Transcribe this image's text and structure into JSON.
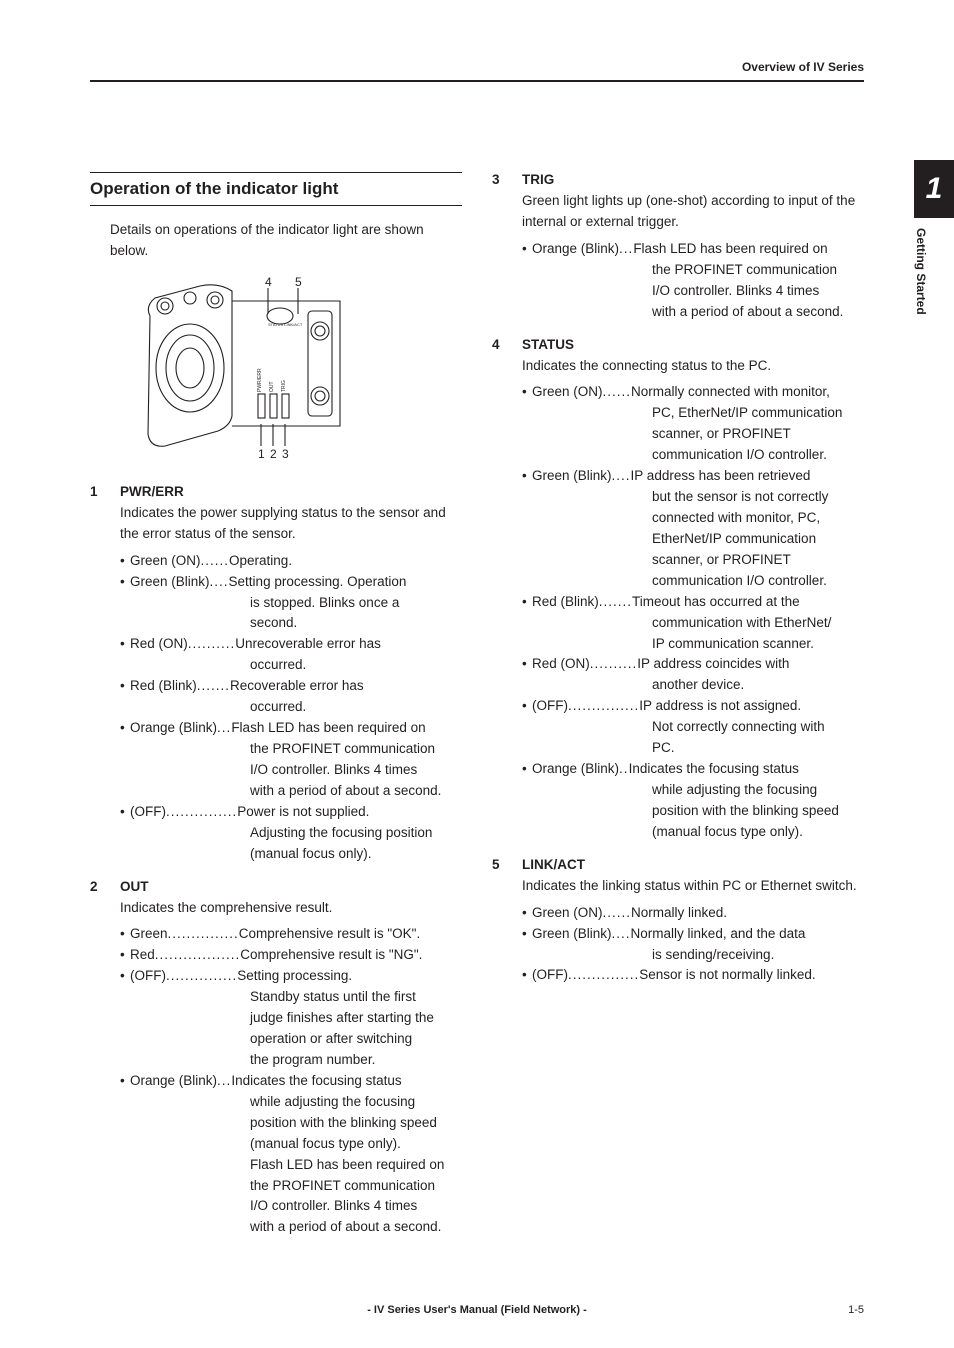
{
  "header": {
    "right": "Overview of IV Series"
  },
  "tab": {
    "number": "1",
    "label": "Getting Started"
  },
  "section_title": "Operation of the indicator light",
  "intro": "Details on operations of the indicator light are shown below.",
  "diagram": {
    "top_numbers": [
      "4",
      "5"
    ],
    "bottom_numbers": [
      "1",
      "2",
      "3"
    ],
    "pin_labels": [
      "PWR/ERR",
      "OUT",
      "TRIG"
    ],
    "top_label": "STATUS LINK/ACT"
  },
  "items": [
    {
      "n": "1",
      "title": "PWR/ERR",
      "body": "Indicates the power supplying status to the sensor and the error status of the sensor.",
      "bullets": [
        {
          "label": "Green (ON)",
          "dots": "......",
          "desc": "Operating.",
          "cont": []
        },
        {
          "label": "Green (Blink)",
          "dots": "....",
          "desc": "Setting processing. Operation",
          "cont": [
            "is stopped. Blinks once a",
            "second."
          ]
        },
        {
          "label": "Red (ON)",
          "dots": "..........",
          "desc": "Unrecoverable error has",
          "cont": [
            "occurred."
          ]
        },
        {
          "label": "Red (Blink)",
          "dots": ".......",
          "desc": "Recoverable error has",
          "cont": [
            "occurred."
          ]
        },
        {
          "label": "Orange (Blink)",
          "dots": "...",
          "desc": "Flash LED has been required on",
          "cont": [
            "the PROFINET communication",
            "I/O controller. Blinks 4 times",
            "with a period of about a second."
          ]
        },
        {
          "label": "(OFF)",
          "dots": "...............",
          "desc": "Power is not supplied.",
          "cont": [
            "Adjusting the focusing position",
            "(manual focus only)."
          ]
        }
      ]
    },
    {
      "n": "2",
      "title": "OUT",
      "body": "Indicates the comprehensive result.",
      "bullets": [
        {
          "label": "Green",
          "dots": "...............",
          "desc": "Comprehensive result is \"OK\".",
          "cont": []
        },
        {
          "label": "Red",
          "dots": "..................",
          "desc": "Comprehensive result is \"NG\".",
          "cont": []
        },
        {
          "label": "(OFF)",
          "dots": "...............",
          "desc": "Setting processing.",
          "cont": [
            "Standby status until the first",
            "judge finishes after starting the",
            "operation or after switching",
            "the program number."
          ]
        },
        {
          "label": "Orange (Blink)",
          "dots": "...",
          "desc": "Indicates the focusing status",
          "cont": [
            "while adjusting the focusing",
            "position with the blinking speed",
            "(manual focus type only).",
            "Flash LED has been required on",
            "the PROFINET communication",
            "I/O controller. Blinks 4 times",
            "with a period of about a second."
          ]
        }
      ]
    },
    {
      "n": "3",
      "title": "TRIG",
      "body": "Green light lights up (one-shot) according to input of the internal or external trigger.",
      "bullets": [
        {
          "label": "Orange (Blink)",
          "dots": "...",
          "desc": "Flash LED has been required on",
          "cont": [
            "the PROFINET communication",
            "I/O controller. Blinks 4 times",
            "with a period of about a second."
          ]
        }
      ]
    },
    {
      "n": "4",
      "title": "STATUS",
      "body": "Indicates the connecting status to the PC.",
      "bullets": [
        {
          "label": "Green (ON)",
          "dots": "......",
          "desc": "Normally connected with monitor,",
          "cont": [
            "PC, EtherNet/IP communication",
            "scanner, or PROFINET",
            "communication I/O controller."
          ]
        },
        {
          "label": "Green (Blink)",
          "dots": "....",
          "desc": "IP address has been retrieved",
          "cont": [
            "but the sensor is not correctly",
            "connected with monitor, PC,",
            "EtherNet/IP communication",
            "scanner, or PROFINET",
            "communication I/O controller."
          ]
        },
        {
          "label": "Red (Blink)",
          "dots": ".......",
          "desc": "Timeout has occurred at the",
          "cont": [
            "communication with EtherNet/",
            "IP communication scanner."
          ]
        },
        {
          "label": "Red (ON)",
          "dots": "..........",
          "desc": "IP address coincides with",
          "cont": [
            "another device."
          ]
        },
        {
          "label": "(OFF)",
          "dots": "...............",
          "desc": "IP address is not assigned.",
          "cont": [
            "Not correctly connecting with",
            "PC."
          ]
        },
        {
          "label": "Orange (Blink)",
          "dots": "..",
          "desc": "Indicates the focusing status",
          "cont": [
            "while adjusting the focusing",
            "position with the blinking speed",
            "(manual focus type only)."
          ]
        }
      ]
    },
    {
      "n": "5",
      "title": "LINK/ACT",
      "body": "Indicates the linking status within PC or Ethernet switch.",
      "bullets": [
        {
          "label": "Green (ON)",
          "dots": "......",
          "desc": "Normally linked.",
          "cont": []
        },
        {
          "label": "Green (Blink)",
          "dots": "....",
          "desc": "Normally linked, and the data",
          "cont": [
            "is sending/receiving."
          ]
        },
        {
          "label": "(OFF)",
          "dots": "...............",
          "desc": "Sensor is not normally linked.",
          "cont": []
        }
      ]
    }
  ],
  "footer": {
    "center": "- IV Series User's Manual (Field Network) -",
    "right": "1-5"
  },
  "colors": {
    "text": "#231f20",
    "rule": "#231f20",
    "tab_bg": "#231f20",
    "tab_fg": "#ffffff"
  }
}
